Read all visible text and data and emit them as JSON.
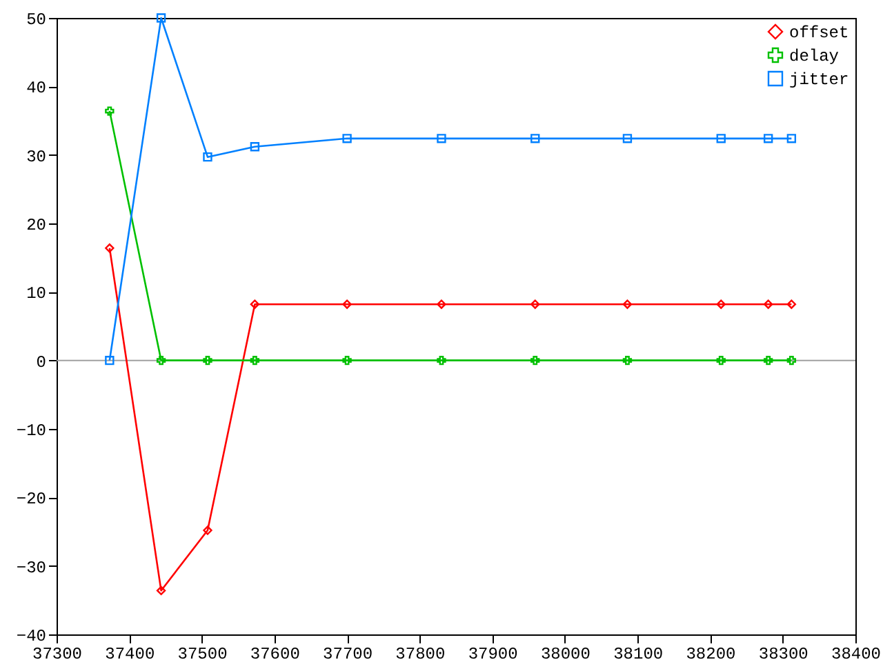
{
  "chart_data": {
    "type": "line",
    "x": [
      37373,
      37444,
      37508,
      37573,
      37700,
      37830,
      37959,
      38086,
      38215,
      38280,
      38312
    ],
    "series": [
      {
        "name": "offset",
        "color": "#ff0000",
        "marker": "diamond",
        "values": [
          16.4,
          -33.6,
          -24.8,
          8.2,
          8.2,
          8.2,
          8.2,
          8.2,
          8.2,
          8.2,
          8.2
        ]
      },
      {
        "name": "delay",
        "color": "#00c000",
        "marker": "cross",
        "values": [
          36.4,
          0,
          0,
          0,
          0,
          0,
          0,
          0,
          0,
          0,
          0
        ]
      },
      {
        "name": "jitter",
        "color": "#0080ff",
        "marker": "square",
        "values": [
          0,
          50,
          29.7,
          31.2,
          32.4,
          32.4,
          32.4,
          32.4,
          32.4,
          32.4,
          32.4
        ]
      }
    ],
    "xlim": [
      37300,
      38400
    ],
    "xticks": [
      37300,
      37400,
      37500,
      37600,
      37700,
      37800,
      37900,
      38000,
      38100,
      38200,
      38300,
      38400
    ],
    "ylim": [
      -40,
      50
    ],
    "yticks": [
      -40,
      -30,
      -20,
      -10,
      0,
      10,
      20,
      30,
      40,
      50
    ],
    "ref_lines": [
      {
        "axis": "y",
        "value": 0,
        "color": "#a0a0a0"
      }
    ],
    "grid": false,
    "legend": "top right",
    "line_style": "solid"
  }
}
